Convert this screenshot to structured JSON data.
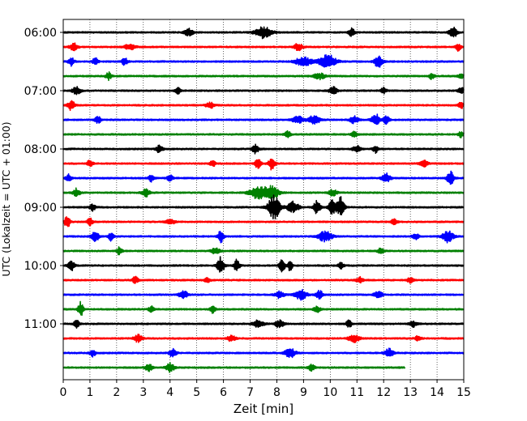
{
  "chart_data": {
    "type": "line",
    "title": "",
    "xlabel": "Zeit  [min]",
    "ylabel": "UTC (Lokalzeit = UTC + 01:00)",
    "xlim": [
      0,
      15
    ],
    "x_ticks": [
      0,
      1,
      2,
      3,
      4,
      5,
      6,
      7,
      8,
      9,
      10,
      11,
      12,
      13,
      14,
      15
    ],
    "x_tick_labels": [
      "0",
      "1",
      "2",
      "3",
      "4",
      "5",
      "6",
      "7",
      "8",
      "9",
      "10",
      "11",
      "12",
      "13",
      "14",
      "15"
    ],
    "y_tick_labels": [
      "06:00",
      "07:00",
      "08:00",
      "09:00",
      "10:00",
      "11:00"
    ],
    "y_tick_rows": [
      0,
      4,
      8,
      12,
      16,
      20
    ],
    "minutes_per_row": 15,
    "grid": {
      "x": "dotted",
      "y": "none"
    },
    "legend": "none",
    "colors": [
      "#000000",
      "#ff0000",
      "#0000ff",
      "#008000"
    ],
    "series": [
      {
        "start": "06:00",
        "color": "#000000",
        "x_end": 15,
        "events": [
          [
            7.5,
            0.8,
            0.3
          ],
          [
            4.7,
            0.5,
            0.15
          ],
          [
            10.8,
            0.6,
            0.1
          ],
          [
            14.6,
            0.7,
            0.15
          ]
        ]
      },
      {
        "start": "06:15",
        "color": "#ff0000",
        "x_end": 15,
        "events": [
          [
            0.4,
            0.5,
            0.15
          ],
          [
            2.5,
            0.4,
            0.2
          ],
          [
            8.8,
            0.5,
            0.15
          ],
          [
            14.8,
            0.5,
            0.1
          ]
        ]
      },
      {
        "start": "06:30",
        "color": "#0000ff",
        "x_end": 15,
        "events": [
          [
            0.3,
            0.6,
            0.1
          ],
          [
            1.2,
            0.5,
            0.1
          ],
          [
            2.3,
            0.5,
            0.1
          ],
          [
            9.0,
            0.6,
            0.3
          ],
          [
            9.9,
            1.0,
            0.3
          ],
          [
            11.8,
            0.8,
            0.15
          ]
        ]
      },
      {
        "start": "06:45",
        "color": "#008000",
        "x_end": 15,
        "events": [
          [
            1.7,
            0.5,
            0.1
          ],
          [
            9.6,
            0.4,
            0.2
          ],
          [
            13.8,
            0.4,
            0.1
          ],
          [
            14.9,
            0.4,
            0.1
          ]
        ]
      },
      {
        "start": "07:00",
        "color": "#000000",
        "x_end": 15,
        "events": [
          [
            0.5,
            0.5,
            0.15
          ],
          [
            4.3,
            0.4,
            0.1
          ],
          [
            10.1,
            0.5,
            0.15
          ],
          [
            12.0,
            0.4,
            0.1
          ],
          [
            14.9,
            0.5,
            0.1
          ]
        ]
      },
      {
        "start": "07:15",
        "color": "#ff0000",
        "x_end": 15,
        "events": [
          [
            0.3,
            0.7,
            0.12
          ],
          [
            5.5,
            0.4,
            0.15
          ],
          [
            14.9,
            0.4,
            0.1
          ]
        ]
      },
      {
        "start": "07:30",
        "color": "#0000ff",
        "x_end": 15,
        "events": [
          [
            1.3,
            0.5,
            0.1
          ],
          [
            8.8,
            0.5,
            0.2
          ],
          [
            9.4,
            0.6,
            0.2
          ],
          [
            10.9,
            0.5,
            0.15
          ],
          [
            11.7,
            0.8,
            0.15
          ],
          [
            12.1,
            0.6,
            0.1
          ]
        ]
      },
      {
        "start": "07:45",
        "color": "#008000",
        "x_end": 15,
        "events": [
          [
            8.4,
            0.6,
            0.1
          ],
          [
            10.9,
            0.4,
            0.1
          ],
          [
            14.9,
            0.4,
            0.1
          ]
        ]
      },
      {
        "start": "08:00",
        "color": "#000000",
        "x_end": 15,
        "events": [
          [
            3.6,
            0.5,
            0.12
          ],
          [
            7.2,
            0.6,
            0.12
          ],
          [
            11.0,
            0.5,
            0.15
          ],
          [
            11.7,
            0.5,
            0.1
          ]
        ]
      },
      {
        "start": "08:15",
        "color": "#ff0000",
        "x_end": 15,
        "events": [
          [
            1.0,
            0.5,
            0.1
          ],
          [
            5.6,
            0.4,
            0.1
          ],
          [
            7.3,
            0.8,
            0.1
          ],
          [
            7.8,
            0.8,
            0.12
          ],
          [
            13.5,
            0.4,
            0.15
          ]
        ]
      },
      {
        "start": "08:30",
        "color": "#0000ff",
        "x_end": 15,
        "events": [
          [
            0.2,
            0.5,
            0.1
          ],
          [
            3.3,
            0.5,
            0.1
          ],
          [
            4.0,
            0.4,
            0.1
          ],
          [
            12.1,
            0.6,
            0.15
          ],
          [
            14.5,
            0.9,
            0.12
          ]
        ]
      },
      {
        "start": "08:45",
        "color": "#008000",
        "x_end": 15,
        "events": [
          [
            0.5,
            0.6,
            0.12
          ],
          [
            3.1,
            0.5,
            0.15
          ],
          [
            7.3,
            0.8,
            0.3
          ],
          [
            7.8,
            0.9,
            0.25
          ],
          [
            10.1,
            0.4,
            0.15
          ]
        ]
      },
      {
        "start": "09:00",
        "color": "#000000",
        "x_end": 15,
        "events": [
          [
            1.1,
            0.5,
            0.1
          ],
          [
            7.9,
            1.6,
            0.22
          ],
          [
            8.6,
            0.8,
            0.2
          ],
          [
            9.5,
            0.9,
            0.12
          ],
          [
            10.1,
            1.0,
            0.15
          ],
          [
            10.4,
            1.4,
            0.12
          ]
        ]
      },
      {
        "start": "09:15",
        "color": "#ff0000",
        "x_end": 15,
        "events": [
          [
            0.15,
            0.8,
            0.1
          ],
          [
            1.0,
            0.5,
            0.1
          ],
          [
            4.0,
            0.4,
            0.15
          ],
          [
            12.4,
            0.4,
            0.1
          ]
        ]
      },
      {
        "start": "09:30",
        "color": "#0000ff",
        "x_end": 15,
        "events": [
          [
            1.2,
            0.9,
            0.12
          ],
          [
            1.8,
            0.6,
            0.1
          ],
          [
            5.9,
            0.8,
            0.1
          ],
          [
            9.8,
            0.7,
            0.25
          ],
          [
            13.2,
            0.4,
            0.12
          ],
          [
            14.4,
            0.8,
            0.2
          ]
        ]
      },
      {
        "start": "09:45",
        "color": "#008000",
        "x_end": 15,
        "events": [
          [
            2.1,
            0.5,
            0.1
          ],
          [
            5.7,
            0.4,
            0.15
          ],
          [
            11.9,
            0.4,
            0.12
          ]
        ]
      },
      {
        "start": "10:00",
        "color": "#000000",
        "x_end": 15,
        "events": [
          [
            0.3,
            0.7,
            0.12
          ],
          [
            5.9,
            1.2,
            0.12
          ],
          [
            6.5,
            0.8,
            0.1
          ],
          [
            8.2,
            0.9,
            0.1
          ],
          [
            8.5,
            0.8,
            0.08
          ],
          [
            10.4,
            0.4,
            0.1
          ]
        ]
      },
      {
        "start": "10:15",
        "color": "#ff0000",
        "x_end": 15,
        "events": [
          [
            2.7,
            0.5,
            0.1
          ],
          [
            5.4,
            0.4,
            0.1
          ],
          [
            11.1,
            0.4,
            0.12
          ],
          [
            13.0,
            0.4,
            0.1
          ]
        ]
      },
      {
        "start": "10:30",
        "color": "#0000ff",
        "x_end": 15,
        "events": [
          [
            4.5,
            0.6,
            0.15
          ],
          [
            8.1,
            0.5,
            0.15
          ],
          [
            8.9,
            0.7,
            0.2
          ],
          [
            9.6,
            0.6,
            0.12
          ],
          [
            11.8,
            0.5,
            0.15
          ]
        ]
      },
      {
        "start": "10:45",
        "color": "#008000",
        "x_end": 15,
        "events": [
          [
            0.65,
            1.0,
            0.1
          ],
          [
            3.3,
            0.4,
            0.1
          ],
          [
            5.6,
            0.5,
            0.1
          ],
          [
            9.5,
            0.4,
            0.12
          ]
        ]
      },
      {
        "start": "11:00",
        "color": "#000000",
        "x_end": 15,
        "events": [
          [
            0.5,
            0.5,
            0.1
          ],
          [
            7.3,
            0.5,
            0.2
          ],
          [
            8.1,
            0.5,
            0.15
          ],
          [
            10.7,
            0.5,
            0.1
          ],
          [
            13.1,
            0.4,
            0.15
          ]
        ]
      },
      {
        "start": "11:15",
        "color": "#ff0000",
        "x_end": 15,
        "events": [
          [
            2.8,
            0.5,
            0.15
          ],
          [
            6.3,
            0.4,
            0.15
          ],
          [
            10.9,
            0.5,
            0.2
          ],
          [
            13.3,
            0.4,
            0.1
          ]
        ]
      },
      {
        "start": "11:30",
        "color": "#0000ff",
        "x_end": 15,
        "events": [
          [
            1.1,
            0.5,
            0.1
          ],
          [
            4.1,
            0.6,
            0.12
          ],
          [
            8.5,
            0.6,
            0.2
          ],
          [
            12.2,
            0.6,
            0.15
          ]
        ]
      },
      {
        "start": "11:45",
        "color": "#008000",
        "x_end": 12.8,
        "events": [
          [
            3.2,
            0.5,
            0.12
          ],
          [
            4.0,
            0.6,
            0.15
          ],
          [
            9.3,
            0.4,
            0.12
          ]
        ]
      }
    ]
  }
}
